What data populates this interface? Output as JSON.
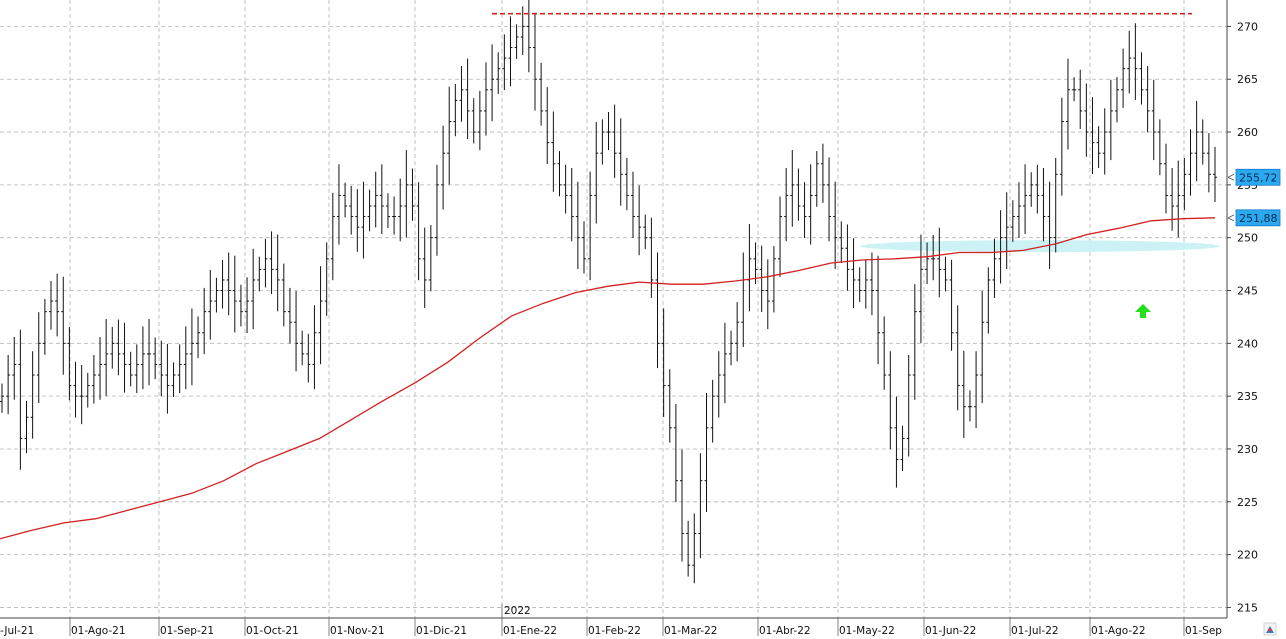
{
  "chart_data": {
    "type": "ohlc",
    "y_axis": {
      "min": 214,
      "max": 272.5,
      "ticks": [
        215,
        220,
        225,
        230,
        235,
        240,
        245,
        250,
        255,
        260,
        265,
        270
      ],
      "side": "right"
    },
    "x_axis": {
      "labels": [
        "-Jul-21",
        "01-Ago-21",
        "01-Sep-21",
        "01-Oct-21",
        "01-Nov-21",
        "01-Dic-21",
        "01-Ene-22",
        "01-Feb-22",
        "01-Mar-22",
        "01-Abr-22",
        "01-May-22",
        "01-Jun-22",
        "01-Jul-22",
        "01-Ago-22",
        "01-Sep"
      ],
      "year_marker": "2022"
    },
    "grid": true,
    "close_series": [
      235,
      237,
      238,
      231,
      233,
      237,
      240,
      243,
      244,
      243,
      240,
      236,
      235,
      235,
      236,
      237,
      238,
      239,
      240,
      239,
      238,
      237,
      238,
      239,
      239,
      238,
      237,
      236,
      237,
      238,
      239,
      240,
      241,
      243,
      244,
      245,
      246,
      245,
      244,
      243,
      244,
      246,
      247,
      248,
      247,
      246,
      243,
      242,
      240,
      239,
      238,
      241,
      244,
      248,
      252,
      254,
      253,
      252,
      251,
      252,
      253,
      254,
      253,
      252,
      252,
      253,
      255,
      253,
      248,
      246,
      250,
      255,
      258,
      261,
      263,
      264,
      262,
      260,
      262,
      264,
      265,
      266,
      267,
      268,
      269,
      270,
      268,
      265,
      262,
      259,
      257,
      255,
      254,
      252,
      250,
      248,
      254,
      258,
      260,
      260,
      258,
      256,
      254,
      252,
      251,
      250,
      246,
      240,
      236,
      232,
      227,
      222,
      219,
      222,
      227,
      232,
      235,
      237,
      239,
      240,
      242,
      246,
      248,
      247,
      245,
      244,
      248,
      252,
      254,
      255,
      253,
      252,
      254,
      257,
      255,
      252,
      250,
      249,
      247,
      246,
      245,
      246,
      245,
      241,
      237,
      232,
      229,
      231,
      237,
      243,
      247,
      248,
      248,
      247,
      246,
      241,
      236,
      234,
      234,
      237,
      242,
      246,
      248,
      250,
      251,
      252,
      253,
      254,
      255,
      254,
      252,
      250,
      256,
      261,
      264,
      264,
      262,
      260,
      259,
      258,
      260,
      262,
      264,
      266,
      267,
      266,
      264,
      262,
      260,
      257,
      254,
      253,
      254,
      256,
      258,
      260,
      258,
      256,
      255.72
    ],
    "series": [
      {
        "name": "ma",
        "color": "#d42020",
        "values": [
          221.5,
          222.3,
          223.0,
          223.4,
          224.2,
          225.0,
          225.8,
          227.0,
          228.6,
          229.8,
          231.0,
          232.8,
          234.6,
          236.3,
          238.2,
          240.5,
          242.6,
          243.8,
          244.8,
          245.4,
          245.8,
          245.6,
          245.6,
          245.9,
          246.3,
          246.9,
          247.6,
          247.9,
          248.0,
          248.2,
          248.6,
          248.6,
          248.8,
          249.4,
          250.3,
          250.9,
          251.6,
          251.8,
          251.88
        ]
      }
    ],
    "resistance_line": {
      "value": 271.2,
      "color": "#d42020",
      "style": "dashed"
    },
    "support_zone": {
      "from": 248.6,
      "to": 249.8,
      "color": "#c9f1f6"
    },
    "annotations": {
      "arrow": "up",
      "arrow_color": "#22e01a"
    },
    "price_badges": [
      {
        "value": 255.72,
        "label": "255,72",
        "color": "#2ba9ef"
      },
      {
        "value": 251.88,
        "label": "251,88",
        "color": "#2ba9ef"
      }
    ]
  }
}
